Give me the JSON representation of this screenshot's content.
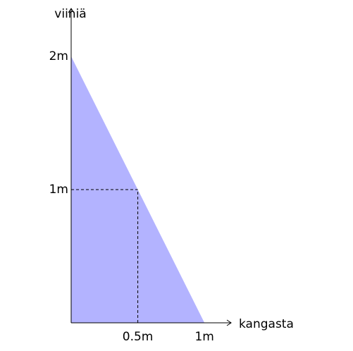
{
  "chart_data": {
    "type": "area",
    "x_label": "kangasta",
    "y_label": "viiniä",
    "x": [
      0,
      1
    ],
    "values": [
      2,
      0
    ],
    "color": "#b3b3ff",
    "xlim": [
      0,
      1.2
    ],
    "ylim": [
      0,
      2.36
    ],
    "xticks": [
      {
        "value": 0.5,
        "label": "0.5m"
      },
      {
        "value": 1,
        "label": "1m"
      }
    ],
    "yticks": [
      {
        "value": 1,
        "label": "1m"
      },
      {
        "value": 2,
        "label": "2m"
      }
    ]
  }
}
